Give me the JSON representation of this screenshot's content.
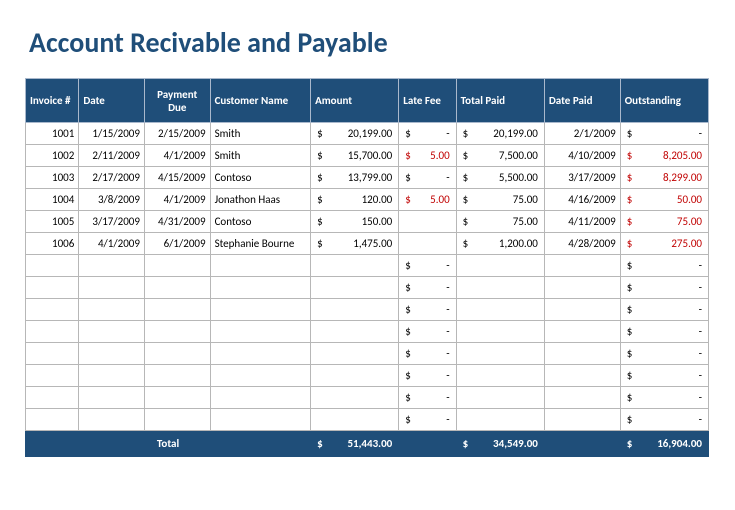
{
  "title": "Account Recivable and Payable",
  "columns": [
    {
      "label": "Invoice #",
      "class": "col-invoice",
      "align": "c"
    },
    {
      "label": "Date",
      "class": "col-date",
      "align": "c"
    },
    {
      "label": "Payment Due",
      "class": "col-paymentdue",
      "align": "c"
    },
    {
      "label": "Customer Name",
      "class": "col-customer",
      "align": "l"
    },
    {
      "label": "Amount",
      "class": "col-amount",
      "align": "l"
    },
    {
      "label": "Late Fee",
      "class": "col-latefee",
      "align": "l"
    },
    {
      "label": "Total Paid",
      "class": "col-totalpaid",
      "align": "l"
    },
    {
      "label": "Date Paid",
      "class": "col-datepaid",
      "align": "l"
    },
    {
      "label": "Outstanding",
      "class": "col-outstanding",
      "align": "l"
    }
  ],
  "rows": [
    {
      "invoice": "1001",
      "date": "1/15/2009",
      "paymentDue": "2/15/2009",
      "customer": "Smith",
      "amount": "20,199.00",
      "lateFee": "-",
      "lateFeeRed": false,
      "totalPaid": "20,199.00",
      "datePaid": "2/1/2009",
      "outstanding": "-",
      "outstandingRed": false
    },
    {
      "invoice": "1002",
      "date": "2/11/2009",
      "paymentDue": "4/1/2009",
      "customer": "Smith",
      "amount": "15,700.00",
      "lateFee": "5.00",
      "lateFeeRed": true,
      "totalPaid": "7,500.00",
      "datePaid": "4/10/2009",
      "outstanding": "8,205.00",
      "outstandingRed": true
    },
    {
      "invoice": "1003",
      "date": "2/17/2009",
      "paymentDue": "4/15/2009",
      "customer": "Contoso",
      "amount": "13,799.00",
      "lateFee": "-",
      "lateFeeRed": false,
      "totalPaid": "5,500.00",
      "datePaid": "3/17/2009",
      "outstanding": "8,299.00",
      "outstandingRed": true
    },
    {
      "invoice": "1004",
      "date": "3/8/2009",
      "paymentDue": "4/1/2009",
      "customer": "Jonathon Haas",
      "amount": "120.00",
      "lateFee": "5.00",
      "lateFeeRed": true,
      "totalPaid": "75.00",
      "datePaid": "4/16/2009",
      "outstanding": "50.00",
      "outstandingRed": true
    },
    {
      "invoice": "1005",
      "date": "3/17/2009",
      "paymentDue": "4/31/2009",
      "customer": "Contoso",
      "amount": "150.00",
      "lateFee": "",
      "lateFeeRed": false,
      "totalPaid": "75.00",
      "datePaid": "4/11/2009",
      "outstanding": "75.00",
      "outstandingRed": true
    },
    {
      "invoice": "1006",
      "date": "4/1/2009",
      "paymentDue": "6/1/2009",
      "customer": "Stephanie Bourne",
      "amount": "1,475.00",
      "lateFee": "",
      "lateFeeRed": false,
      "totalPaid": "1,200.00",
      "datePaid": "4/28/2009",
      "outstanding": "275.00",
      "outstandingRed": true
    },
    {
      "invoice": "",
      "date": "",
      "paymentDue": "",
      "customer": "",
      "amount": "",
      "lateFee": "-",
      "lateFeeRed": false,
      "totalPaid": "",
      "datePaid": "",
      "outstanding": "-",
      "outstandingRed": false
    },
    {
      "invoice": "",
      "date": "",
      "paymentDue": "",
      "customer": "",
      "amount": "",
      "lateFee": "-",
      "lateFeeRed": false,
      "totalPaid": "",
      "datePaid": "",
      "outstanding": "-",
      "outstandingRed": false
    },
    {
      "invoice": "",
      "date": "",
      "paymentDue": "",
      "customer": "",
      "amount": "",
      "lateFee": "-",
      "lateFeeRed": false,
      "totalPaid": "",
      "datePaid": "",
      "outstanding": "-",
      "outstandingRed": false
    },
    {
      "invoice": "",
      "date": "",
      "paymentDue": "",
      "customer": "",
      "amount": "",
      "lateFee": "-",
      "lateFeeRed": false,
      "totalPaid": "",
      "datePaid": "",
      "outstanding": "-",
      "outstandingRed": false
    },
    {
      "invoice": "",
      "date": "",
      "paymentDue": "",
      "customer": "",
      "amount": "",
      "lateFee": "-",
      "lateFeeRed": false,
      "totalPaid": "",
      "datePaid": "",
      "outstanding": "-",
      "outstandingRed": false
    },
    {
      "invoice": "",
      "date": "",
      "paymentDue": "",
      "customer": "",
      "amount": "",
      "lateFee": "-",
      "lateFeeRed": false,
      "totalPaid": "",
      "datePaid": "",
      "outstanding": "-",
      "outstandingRed": false
    },
    {
      "invoice": "",
      "date": "",
      "paymentDue": "",
      "customer": "",
      "amount": "",
      "lateFee": "-",
      "lateFeeRed": false,
      "totalPaid": "",
      "datePaid": "",
      "outstanding": "-",
      "outstandingRed": false
    },
    {
      "invoice": "",
      "date": "",
      "paymentDue": "",
      "customer": "",
      "amount": "",
      "lateFee": "-",
      "lateFeeRed": false,
      "totalPaid": "",
      "datePaid": "",
      "outstanding": "-",
      "outstandingRed": false
    }
  ],
  "totals": {
    "label": "Total",
    "amount": "51,443.00",
    "totalPaid": "34,549.00",
    "outstanding": "16,904.00"
  },
  "currency_symbol": "$"
}
